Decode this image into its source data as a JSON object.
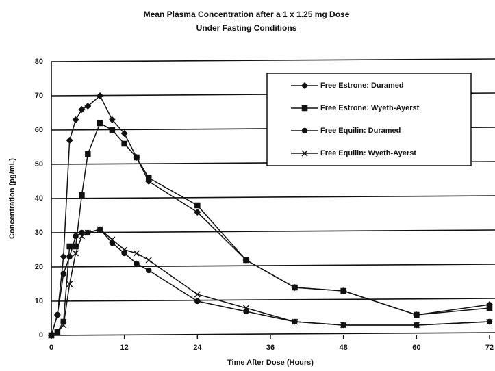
{
  "chart_data": {
    "type": "line",
    "title": "Mean Plasma Concentration after a 1 x 1.25 mg Dose",
    "subtitle": "Under Fasting Conditions",
    "xlabel": "Time After Dose (Hours)",
    "ylabel": "Concentration (pg/mL)",
    "x": [
      0,
      1,
      2,
      3,
      4,
      5,
      6,
      8,
      10,
      12,
      14,
      16,
      24,
      32,
      40,
      48,
      60,
      72
    ],
    "xlim": [
      0,
      72
    ],
    "xticks": [
      0,
      12,
      24,
      36,
      48,
      60,
      72
    ],
    "ylim": [
      0,
      80
    ],
    "yticks": [
      0,
      10,
      20,
      30,
      40,
      50,
      60,
      70,
      80
    ],
    "grid": true,
    "legend": "upper right",
    "series": [
      {
        "name": "Free Estrone: Duramed",
        "color": "#111111",
        "marker": "diamond",
        "values": [
          0,
          6,
          23,
          57,
          63,
          66,
          67,
          70,
          63,
          59,
          52,
          45,
          36,
          22,
          14,
          13,
          6,
          9
        ]
      },
      {
        "name": "Free Estrone: Wyeth-Ayerst",
        "color": "#111111",
        "marker": "square",
        "values": [
          0,
          1,
          4,
          26,
          26,
          41,
          53,
          62,
          60,
          56,
          52,
          46,
          38,
          22,
          14,
          13,
          6,
          8
        ]
      },
      {
        "name": "Free Equilin: Duramed",
        "color": "#111111",
        "marker": "circle",
        "values": [
          0,
          6,
          18,
          23,
          29,
          30,
          30,
          31,
          27,
          24,
          21,
          19,
          10,
          7,
          4,
          3,
          3,
          4
        ]
      },
      {
        "name": "Free Equilin: Wyeth-Ayerst",
        "color": "#111111",
        "marker": "x",
        "values": [
          0,
          1,
          3,
          15,
          24,
          29,
          30,
          31,
          28,
          25,
          24,
          22,
          12,
          8,
          4,
          3,
          3,
          4
        ]
      }
    ]
  }
}
